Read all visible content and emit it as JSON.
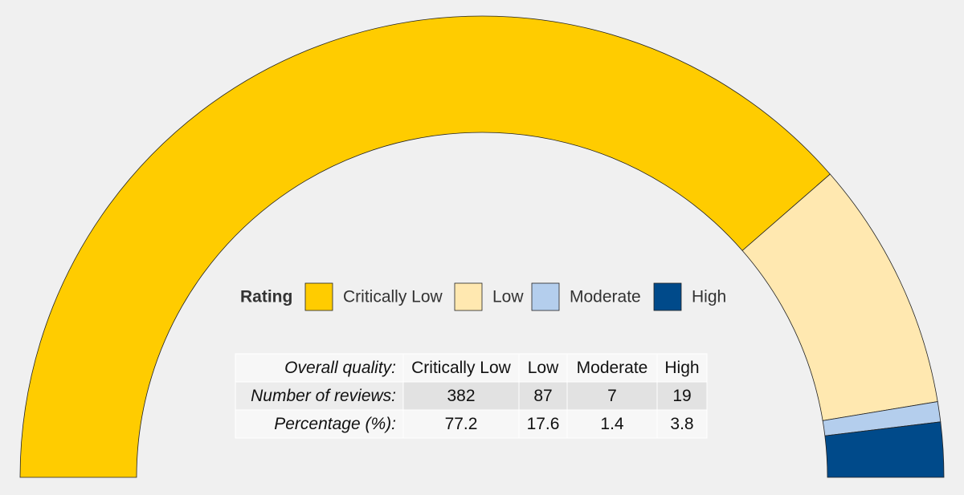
{
  "chart_data": {
    "type": "half-donut",
    "legend_title": "Rating",
    "categories": [
      "Critically Low",
      "Low",
      "Moderate",
      "High"
    ],
    "colors": [
      "#ffcc00",
      "#ffe8b0",
      "#b4ceed",
      "#004a8a"
    ],
    "values": [
      382,
      87,
      7,
      19
    ],
    "percentages": [
      77.2,
      17.6,
      1.4,
      3.8
    ],
    "table": {
      "header_label": "Overall quality:",
      "count_label": "Number of reviews:",
      "percent_label": "Percentage (%):"
    }
  }
}
